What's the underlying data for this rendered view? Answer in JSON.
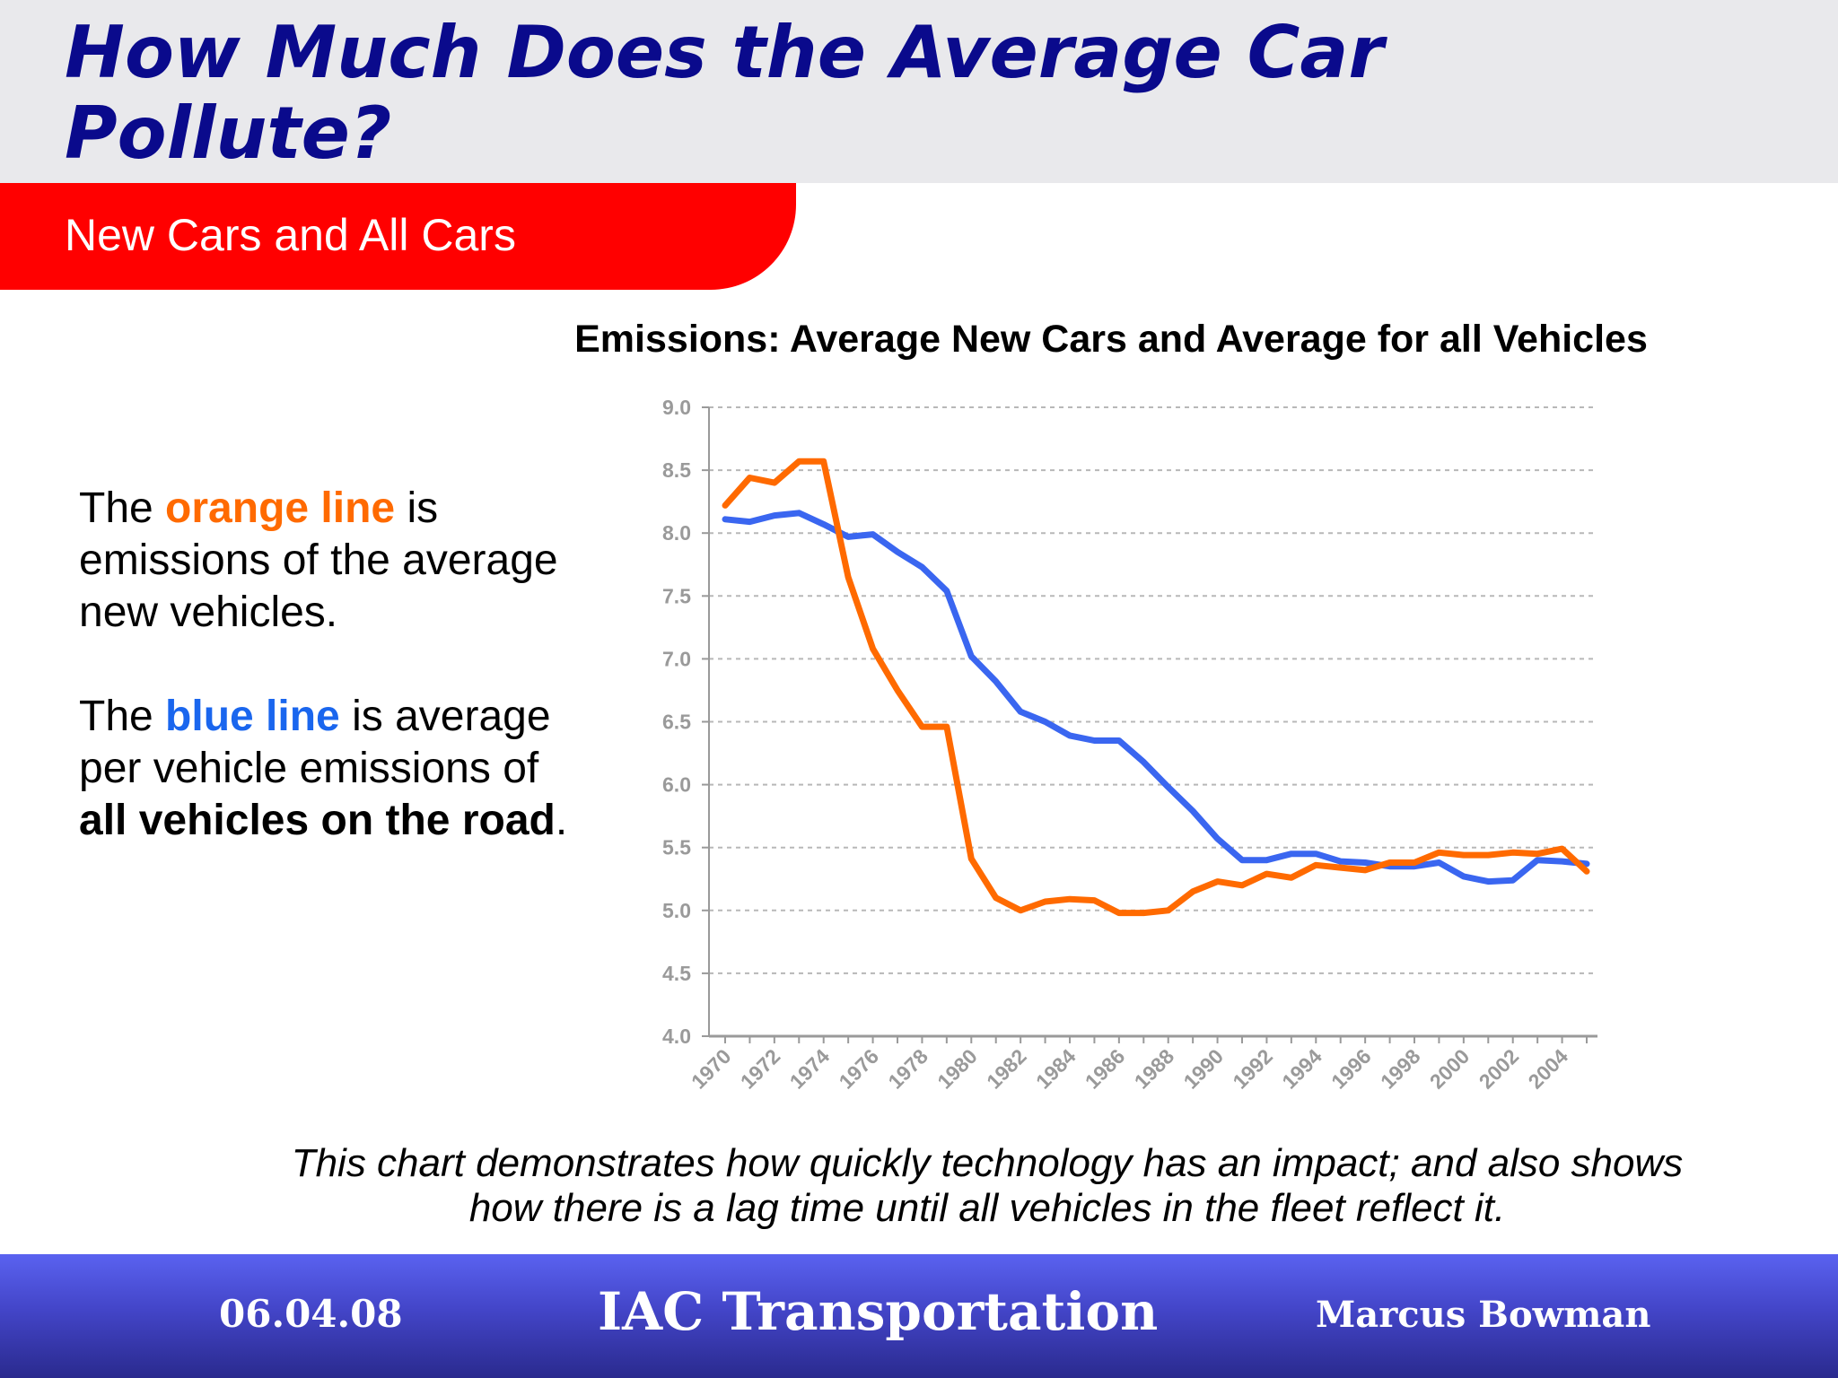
{
  "slide": {
    "title": "How Much Does the Average Car Pollute?",
    "subtitle": "New Cars and All Cars"
  },
  "legend_text": {
    "p1_pre": "The ",
    "p1_highlight": "orange line",
    "p1_post": " is emissions of the average new vehicles.",
    "p2_pre": "The ",
    "p2_highlight": "blue line",
    "p2_mid": " is average per vehicle emissions of ",
    "p2_bold": "all vehicles on the road",
    "p2_end": "."
  },
  "caption": "This chart demonstrates how quickly technology has an impact; and also shows how there is a lag time until all vehicles in the fleet reflect it.",
  "footer": {
    "date": "06.04.08",
    "organization": "IAC Transportation",
    "author": "Marcus Bowman"
  },
  "colors": {
    "title": "#0a0a8c",
    "subtitle_band": "#ff0000",
    "new_cars": "#ff6a00",
    "all_vehicles": "#3a66f0",
    "footer": "#4345c8"
  },
  "chart_data": {
    "type": "line",
    "title": "Emissions: Average New Cars and Average for all Vehicles",
    "xlabel": "",
    "ylabel": "",
    "ylim": [
      4.0,
      9.0
    ],
    "ytick_labels": [
      "4.0",
      "4.5",
      "5.0",
      "5.5",
      "6.0",
      "6.5",
      "7.0",
      "7.5",
      "8.0",
      "8.5",
      "9.0"
    ],
    "x": [
      1970,
      1971,
      1972,
      1973,
      1974,
      1975,
      1976,
      1977,
      1978,
      1979,
      1980,
      1981,
      1982,
      1983,
      1984,
      1985,
      1986,
      1987,
      1988,
      1989,
      1990,
      1991,
      1992,
      1993,
      1994,
      1995,
      1996,
      1997,
      1998,
      1999,
      2000,
      2001,
      2002,
      2003,
      2004,
      2005
    ],
    "xtick_labels": [
      "1970",
      "1972",
      "1974",
      "1976",
      "1978",
      "1980",
      "1982",
      "1984",
      "1986",
      "1988",
      "1990",
      "1992",
      "1994",
      "1996",
      "1998",
      "2000",
      "2002",
      "2004"
    ],
    "grid": true,
    "series": [
      {
        "name": "Average new vehicles",
        "color": "#ff6a00",
        "values": [
          8.22,
          8.44,
          8.4,
          8.57,
          8.57,
          7.65,
          7.08,
          6.75,
          6.46,
          6.46,
          5.41,
          5.1,
          5.0,
          5.07,
          5.09,
          5.08,
          4.98,
          4.98,
          5.0,
          5.15,
          5.23,
          5.2,
          5.29,
          5.26,
          5.36,
          5.34,
          5.32,
          5.38,
          5.38,
          5.46,
          5.44,
          5.44,
          5.46,
          5.45,
          5.49,
          5.31
        ]
      },
      {
        "name": "Average all vehicles on the road",
        "color": "#3a66f0",
        "values": [
          8.11,
          8.09,
          8.14,
          8.16,
          8.07,
          7.97,
          7.99,
          7.85,
          7.73,
          7.54,
          7.02,
          6.82,
          6.58,
          6.5,
          6.39,
          6.35,
          6.35,
          6.18,
          5.98,
          5.79,
          5.57,
          5.4,
          5.4,
          5.45,
          5.45,
          5.39,
          5.38,
          5.35,
          5.35,
          5.38,
          5.27,
          5.23,
          5.24,
          5.4,
          5.39,
          5.37
        ]
      }
    ]
  }
}
